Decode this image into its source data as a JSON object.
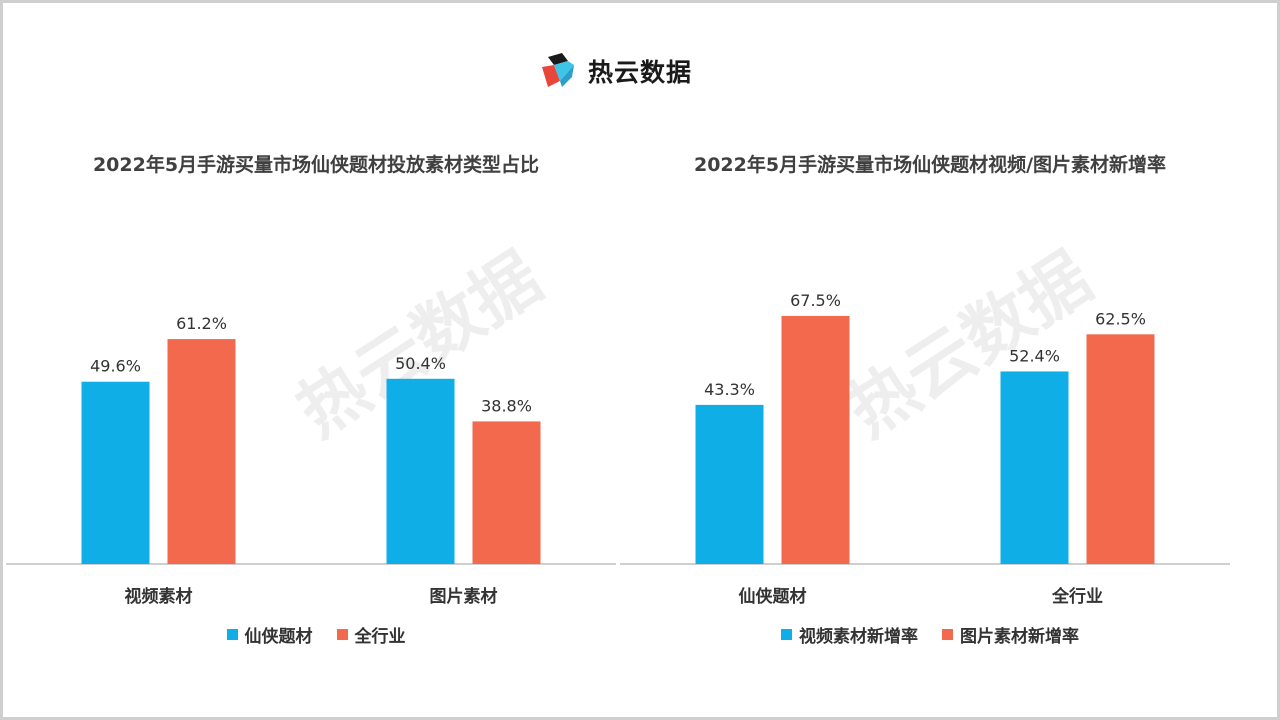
{
  "brand": {
    "name": "热云数据",
    "watermark": "热云数据",
    "logo_icon": "reyun-cube-logo-icon"
  },
  "colors": {
    "series1": "#10aee6",
    "series2": "#f2694e",
    "axis": "#bfbfbf"
  },
  "chart_data": [
    {
      "type": "bar",
      "title": "2022年5月手游买量市场仙侠题材投放素材类型占比",
      "categories": [
        "视频素材",
        "图片素材"
      ],
      "series": [
        {
          "name": "仙侠题材",
          "values": [
            49.6,
            50.4
          ],
          "labels": [
            "49.6%",
            "50.4%"
          ]
        },
        {
          "name": "全行业",
          "values": [
            61.2,
            38.8
          ],
          "labels": [
            "61.2%",
            "38.8%"
          ]
        }
      ],
      "ylim": [
        0,
        80
      ],
      "grid": false,
      "legend": "bottom-center"
    },
    {
      "type": "bar",
      "title": "2022年5月手游买量市场仙侠题材视频/图片素材新增率",
      "categories": [
        "仙侠题材",
        "全行业"
      ],
      "series": [
        {
          "name": "视频素材新增率",
          "values": [
            43.3,
            52.4
          ],
          "labels": [
            "43.3%",
            "52.4%"
          ]
        },
        {
          "name": "图片素材新增率",
          "values": [
            67.5,
            62.5
          ],
          "labels": [
            "67.5%",
            "62.5%"
          ]
        }
      ],
      "ylim": [
        0,
        80
      ],
      "grid": false,
      "legend": "bottom-center"
    }
  ]
}
